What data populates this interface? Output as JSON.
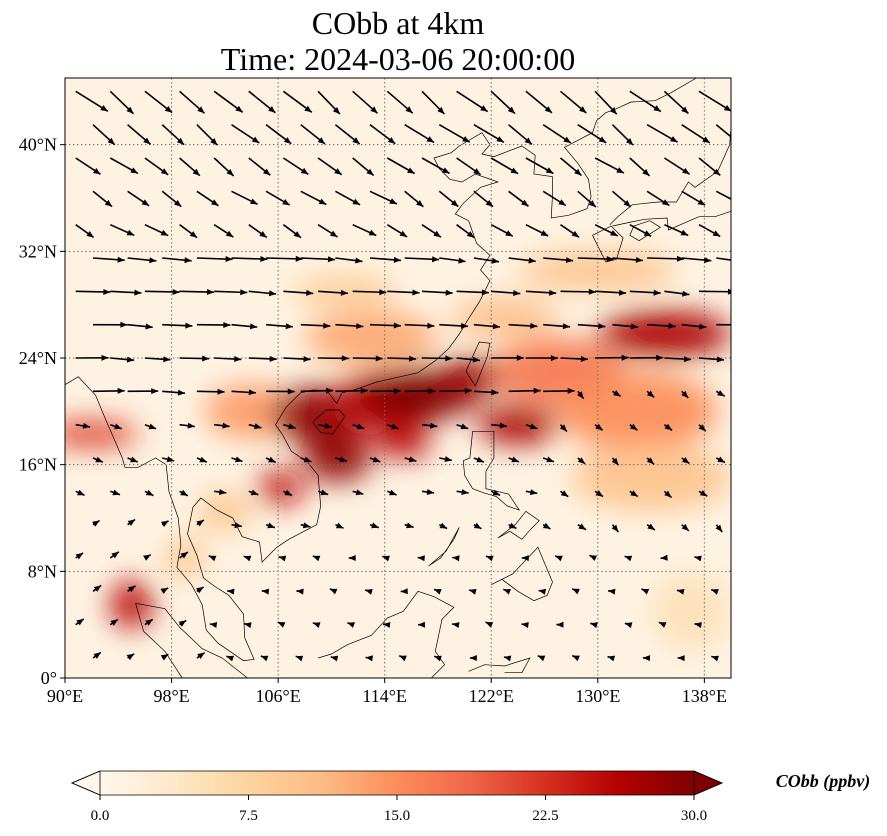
{
  "title": {
    "line1": "CObb at 4km",
    "line2": "Time: 2024-03-06 20:00:00"
  },
  "chart_data": {
    "type": "heatmap",
    "variable": "CObb",
    "x_axis": {
      "range": [
        90,
        140
      ],
      "ticks": [
        90,
        98,
        106,
        114,
        122,
        130,
        138
      ],
      "tick_labels": [
        "90°E",
        "98°E",
        "106°E",
        "114°E",
        "122°E",
        "130°E",
        "138°E"
      ]
    },
    "y_axis": {
      "range": [
        0,
        45
      ],
      "ticks": [
        0,
        8,
        16,
        24,
        32,
        40
      ],
      "tick_labels": [
        "0°",
        "8°N",
        "16°N",
        "24°N",
        "32°N",
        "40°N"
      ]
    },
    "grid": "dotted",
    "colorbar": {
      "label": "CObb (ppbv)",
      "min": 0,
      "max": 30,
      "ticks": [
        0,
        7.5,
        15,
        22.5,
        30
      ],
      "tick_labels": [
        "0.0",
        "7.5",
        "15.0",
        "22.5",
        "30.0"
      ],
      "extend": "both",
      "colormap": "OrRd",
      "colors": [
        "#fff7ec",
        "#fee8c8",
        "#fdd49e",
        "#fdbb84",
        "#fc8d59",
        "#ef6548",
        "#d7301f",
        "#b30000",
        "#7f0000"
      ]
    },
    "plumes": [
      {
        "lon": 95,
        "lat": 5.5,
        "value": 26,
        "rlon": 1.6,
        "rlat": 1.8
      },
      {
        "lon": 92,
        "lat": 18.3,
        "value": 22,
        "rlon": 3.5,
        "rlat": 1.0
      },
      {
        "lon": 104,
        "lat": 20,
        "value": 14,
        "rlon": 3.5,
        "rlat": 2.0
      },
      {
        "lon": 109,
        "lat": 19.7,
        "value": 29,
        "rlon": 3.5,
        "rlat": 2.2
      },
      {
        "lon": 110.5,
        "lat": 16.5,
        "value": 29,
        "rlon": 2.5,
        "rlat": 1.8
      },
      {
        "lon": 106.2,
        "lat": 14.3,
        "value": 25,
        "rlon": 1.8,
        "rlat": 1.3
      },
      {
        "lon": 114,
        "lat": 20.5,
        "value": 25,
        "rlon": 4.0,
        "rlat": 2.5
      },
      {
        "lon": 116.5,
        "lat": 21.3,
        "value": 30,
        "rlon": 4.5,
        "rlat": 2.0
      },
      {
        "lon": 120.5,
        "lat": 22.5,
        "value": 28,
        "rlon": 2.5,
        "rlat": 1.5
      },
      {
        "lon": 115.5,
        "lat": 17.5,
        "value": 26,
        "rlon": 2.0,
        "rlat": 1.0
      },
      {
        "lon": 124,
        "lat": 19,
        "value": 27,
        "rlon": 3.0,
        "rlat": 1.5
      },
      {
        "lon": 127,
        "lat": 23,
        "value": 17,
        "rlon": 5.0,
        "rlat": 2.5
      },
      {
        "lon": 135,
        "lat": 25.8,
        "value": 27,
        "rlon": 5.0,
        "rlat": 1.8
      },
      {
        "lon": 133,
        "lat": 20,
        "value": 15,
        "rlon": 6.0,
        "rlat": 3.0
      },
      {
        "lon": 134,
        "lat": 15,
        "value": 10,
        "rlon": 6.0,
        "rlat": 2.5
      },
      {
        "lon": 113,
        "lat": 25.5,
        "value": 13,
        "rlon": 5.0,
        "rlat": 2.0
      },
      {
        "lon": 111,
        "lat": 29,
        "value": 9,
        "rlon": 4.0,
        "rlat": 1.2
      },
      {
        "lon": 123,
        "lat": 27,
        "value": 11,
        "rlon": 4.0,
        "rlat": 1.5
      },
      {
        "lon": 102,
        "lat": 12.5,
        "value": 10,
        "rlon": 2.0,
        "rlat": 1.5
      },
      {
        "lon": 99,
        "lat": 9,
        "value": 10,
        "rlon": 1.5,
        "rlat": 1.5
      },
      {
        "lon": 130,
        "lat": 30.5,
        "value": 10,
        "rlon": 6.0,
        "rlat": 1.5
      },
      {
        "lon": 137,
        "lat": 5,
        "value": 5,
        "rlon": 3.0,
        "rlat": 3.0
      }
    ],
    "wind_barbs_note": "",
    "coastlines_note": ""
  }
}
